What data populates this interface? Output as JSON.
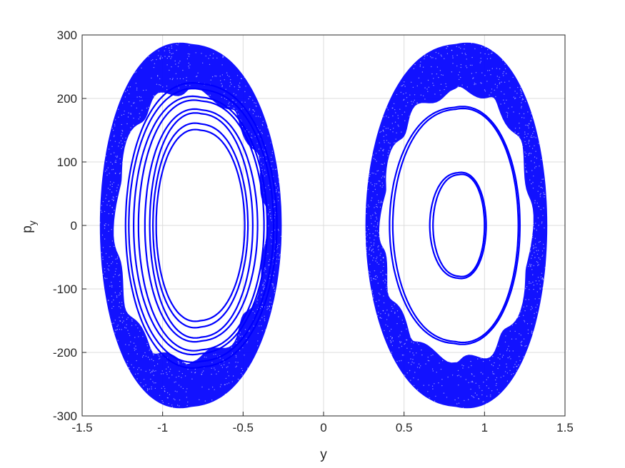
{
  "chart_data": {
    "type": "scatter",
    "title": "",
    "xlabel": "y",
    "ylabel": "p",
    "ylabel_subscript": "y",
    "xlim": [
      -1.5,
      1.5
    ],
    "ylim": [
      -300,
      300
    ],
    "xticks": [
      -1.5,
      -1,
      -0.5,
      0,
      0.5,
      1,
      1.5
    ],
    "xtick_labels": [
      "-1.5",
      "-1",
      "-0.5",
      "0",
      "0.5",
      "1",
      "1.5"
    ],
    "yticks": [
      -300,
      -200,
      -100,
      0,
      100,
      200,
      300
    ],
    "ytick_labels": [
      "-300",
      "-200",
      "-100",
      "0",
      "100",
      "200",
      "300"
    ],
    "grid": true,
    "marker_color": "#0000ff",
    "regions": [
      {
        "kind": "chaotic-band",
        "center_y": -0.98,
        "outer": {
          "y_min": -1.39,
          "y_max": -0.26,
          "p_max": 286
        },
        "inner": {
          "y_min": -1.29,
          "y_max": -0.36,
          "p_max": 210
        }
      },
      {
        "kind": "chaotic-band",
        "center_y": 0.98,
        "outer": {
          "y_min": 0.26,
          "y_max": 1.39,
          "p_max": 286
        },
        "inner": {
          "y_min": 0.36,
          "y_max": 1.29,
          "p_max": 210
        }
      }
    ],
    "orbits": [
      {
        "side": "left",
        "y_min": -1.23,
        "y_max": -0.29,
        "p_max": 223
      },
      {
        "side": "left",
        "y_min": -1.21,
        "y_max": -0.31,
        "p_max": 214
      },
      {
        "side": "left",
        "y_min": -1.18,
        "y_max": -0.35,
        "p_max": 202
      },
      {
        "side": "left",
        "y_min": -1.15,
        "y_max": -0.37,
        "p_max": 196
      },
      {
        "side": "left",
        "y_min": -1.11,
        "y_max": -0.41,
        "p_max": 182
      },
      {
        "side": "left",
        "y_min": -1.08,
        "y_max": -0.44,
        "p_max": 176
      },
      {
        "side": "left",
        "y_min": -1.06,
        "y_max": -0.47,
        "p_max": 160
      },
      {
        "side": "left",
        "y_min": -1.04,
        "y_max": -0.49,
        "p_max": 150
      },
      {
        "side": "right",
        "y_min": 0.41,
        "y_max": 1.22,
        "p_max": 186
      },
      {
        "side": "right",
        "y_min": 0.43,
        "y_max": 1.21,
        "p_max": 183
      },
      {
        "side": "right",
        "y_min": 0.66,
        "y_max": 1.01,
        "p_max": 83
      },
      {
        "side": "right",
        "y_min": 0.68,
        "y_max": 1.0,
        "p_max": 80
      }
    ]
  }
}
